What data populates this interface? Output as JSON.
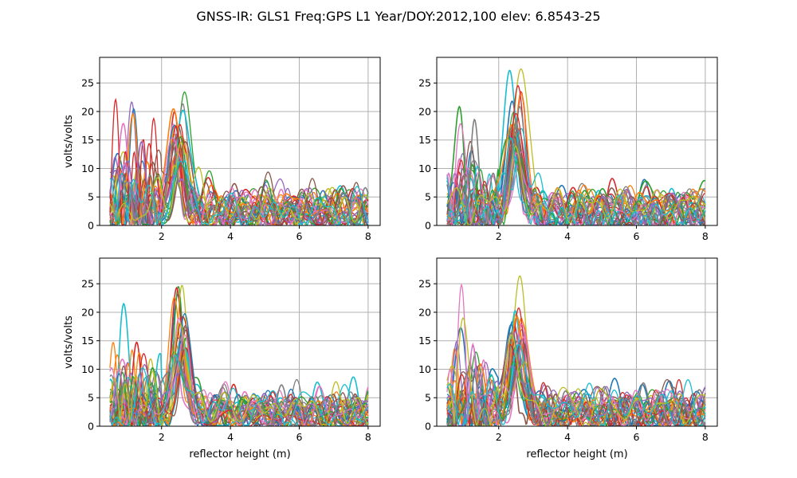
{
  "title": "GNSS-IR: GLS1 Freq:GPS L1 Year/DOY:2012,100 elev: 6.8543-25",
  "palette": [
    "#1f77b4",
    "#ff7f0e",
    "#2ca02c",
    "#d62728",
    "#9467bd",
    "#8c564b",
    "#e377c2",
    "#7f7f7f",
    "#bcbd22",
    "#17becf"
  ],
  "chart_data": [
    {
      "type": "line",
      "panel": "top-left",
      "xlabel": "",
      "ylabel": "volts/volts",
      "xlim": [
        0.2,
        8.35
      ],
      "ylim": [
        0,
        29.5
      ],
      "xticks": [
        2,
        4,
        6,
        8
      ],
      "yticks": [
        0,
        5,
        10,
        15,
        20,
        25
      ],
      "grid": true,
      "x_range": [
        0.5,
        8.0
      ],
      "peak_height_m": 2.5,
      "series_count": 30,
      "seed": 11,
      "peak_values": [
        13.5,
        11.5,
        20.0,
        15.0,
        9.5,
        12.5,
        10.5,
        17.0,
        14.5,
        19.5,
        12.0,
        13.0,
        11.0,
        16.0,
        8.5,
        10.0,
        12.5,
        14.0,
        9.0,
        11.0,
        13.5,
        15.5,
        10.5,
        12.0,
        7.5,
        11.5,
        13.0,
        9.5,
        12.5,
        10.0
      ]
    },
    {
      "type": "line",
      "panel": "top-right",
      "xlabel": "",
      "ylabel": "",
      "xlim": [
        0.2,
        8.35
      ],
      "ylim": [
        0,
        29.5
      ],
      "xticks": [
        2,
        4,
        6,
        8
      ],
      "yticks": [
        0,
        5,
        10,
        15,
        20,
        25
      ],
      "grid": true,
      "x_range": [
        0.5,
        8.0
      ],
      "peak_height_m": 2.5,
      "series_count": 30,
      "seed": 23,
      "peak_values": [
        19.5,
        14.0,
        17.5,
        22.5,
        13.0,
        16.0,
        11.5,
        12.5,
        26.7,
        23.2,
        15.0,
        18.0,
        12.0,
        20.0,
        10.5,
        14.5,
        11.0,
        16.5,
        9.5,
        13.5,
        12.0,
        15.5,
        10.0,
        17.0,
        8.5,
        13.0,
        11.5,
        14.0,
        9.0,
        12.5
      ]
    },
    {
      "type": "line",
      "panel": "bottom-left",
      "xlabel": "reflector height (m)",
      "ylabel": "volts/volts",
      "xlim": [
        0.2,
        8.35
      ],
      "ylim": [
        0,
        29.5
      ],
      "xticks": [
        2,
        4,
        6,
        8
      ],
      "yticks": [
        0,
        5,
        10,
        15,
        20,
        25
      ],
      "grid": true,
      "x_range": [
        0.5,
        8.0
      ],
      "peak_height_m": 2.55,
      "series_count": 30,
      "seed": 37,
      "peak_values": [
        19.5,
        14.5,
        22.5,
        17.5,
        12.5,
        13.0,
        11.0,
        10.5,
        20.8,
        15.0,
        12.0,
        18.0,
        13.5,
        16.5,
        10.0,
        11.5,
        14.0,
        12.5,
        9.5,
        13.0,
        15.5,
        11.0,
        10.5,
        12.0,
        8.5,
        13.5,
        11.5,
        10.0,
        12.5,
        9.0
      ]
    },
    {
      "type": "line",
      "panel": "bottom-right",
      "xlabel": "reflector height (m)",
      "ylabel": "",
      "xlim": [
        0.2,
        8.35
      ],
      "ylim": [
        0,
        29.5
      ],
      "xticks": [
        2,
        4,
        6,
        8
      ],
      "yticks": [
        0,
        5,
        10,
        15,
        20,
        25
      ],
      "grid": true,
      "x_range": [
        0.5,
        8.0
      ],
      "peak_height_m": 2.5,
      "series_count": 30,
      "seed": 51,
      "peak_values": [
        15.5,
        19.5,
        12.5,
        17.0,
        13.0,
        11.5,
        14.0,
        12.0,
        21.3,
        16.5,
        13.5,
        18.5,
        11.0,
        15.0,
        10.5,
        12.5,
        14.5,
        11.0,
        9.5,
        13.0,
        12.0,
        15.5,
        10.0,
        13.5,
        9.0,
        11.5,
        12.5,
        10.5,
        14.0,
        9.5
      ]
    }
  ]
}
